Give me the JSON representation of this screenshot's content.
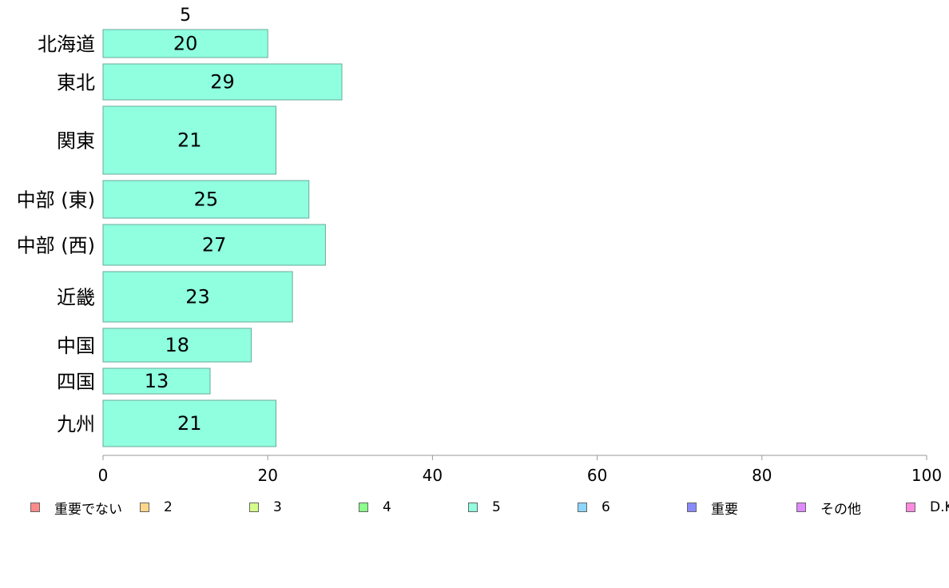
{
  "chart_data": {
    "type": "bar",
    "orientation": "horizontal",
    "categories": [
      "北海道",
      "東北",
      "関東",
      "中部 (東)",
      "中部 (西)",
      "近畿",
      "中国",
      "四国",
      "九州"
    ],
    "series": [
      {
        "name": "5",
        "values": [
          20,
          29,
          21,
          25,
          27,
          23,
          18,
          13,
          21
        ],
        "color": "#8fffdf"
      }
    ],
    "series_label_top": "5",
    "xlim": [
      0,
      100
    ],
    "xticks": [
      0,
      20,
      40,
      60,
      80,
      100
    ],
    "grid": false,
    "legend_position": "bottom",
    "legend": [
      {
        "label": "重要でない",
        "color": "#ff8a8a"
      },
      {
        "label": "2",
        "color": "#ffd68a"
      },
      {
        "label": "3",
        "color": "#d6ff8a"
      },
      {
        "label": "4",
        "color": "#8aff8a"
      },
      {
        "label": "5",
        "color": "#8fffdf"
      },
      {
        "label": "6",
        "color": "#8ad6ff"
      },
      {
        "label": "重要",
        "color": "#8a8aff"
      },
      {
        "label": "その他",
        "color": "#df8aff"
      },
      {
        "label": "D.K.",
        "color": "#ff8ae0"
      }
    ]
  }
}
